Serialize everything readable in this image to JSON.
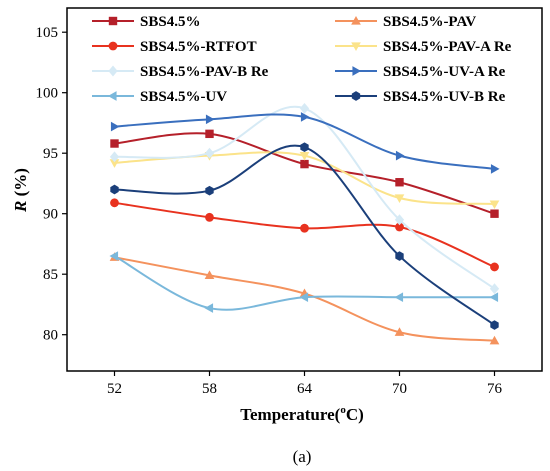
{
  "chart_data": {
    "type": "line",
    "x": [
      52,
      58,
      64,
      70,
      76
    ],
    "xlabel_main": "Temperature(",
    "xlabel_sup": "o",
    "xlabel_end": "C)",
    "ylabel_main": "R",
    "ylabel_end": " (%)",
    "xlim": [
      49,
      79
    ],
    "ylim": [
      77,
      107
    ],
    "yticks": [
      80,
      85,
      90,
      95,
      100,
      105
    ],
    "xticks": [
      52,
      58,
      64,
      70,
      76
    ],
    "caption": "(a)",
    "grid": false,
    "legend_position": "top",
    "series": [
      {
        "name": "SBS4.5%",
        "color": "#b5202a",
        "marker": "square",
        "values": [
          95.8,
          96.6,
          94.1,
          92.6,
          90.0
        ]
      },
      {
        "name": "SBS4.5%-PAV",
        "color": "#f4925d",
        "marker": "triangle-up",
        "values": [
          86.4,
          84.9,
          83.4,
          80.2,
          79.5
        ]
      },
      {
        "name": "SBS4.5%-RTFOT",
        "color": "#e8321f",
        "marker": "circle",
        "values": [
          90.9,
          89.7,
          88.8,
          88.9,
          85.6
        ]
      },
      {
        "name": "SBS4.5%-PAV-A Re",
        "color": "#fbe38a",
        "marker": "triangle-down",
        "values": [
          94.2,
          94.8,
          94.8,
          91.3,
          90.8
        ]
      },
      {
        "name": "SBS4.5%-PAV-B Re",
        "color": "#d6eaf5",
        "marker": "diamond",
        "values": [
          94.7,
          95.0,
          98.7,
          89.5,
          83.8
        ]
      },
      {
        "name": "SBS4.5%-UV-A Re",
        "color": "#3a6fbe",
        "marker": "triangle-right",
        "values": [
          97.2,
          97.8,
          98.0,
          94.8,
          93.7
        ]
      },
      {
        "name": "SBS4.5%-UV",
        "color": "#7ab8db",
        "marker": "triangle-left",
        "values": [
          86.5,
          82.2,
          83.1,
          83.1,
          83.1
        ]
      },
      {
        "name": "SBS4.5%-UV-B Re",
        "color": "#1b3f7a",
        "marker": "hexagon",
        "values": [
          92.0,
          91.9,
          95.5,
          86.5,
          80.8
        ]
      }
    ]
  }
}
